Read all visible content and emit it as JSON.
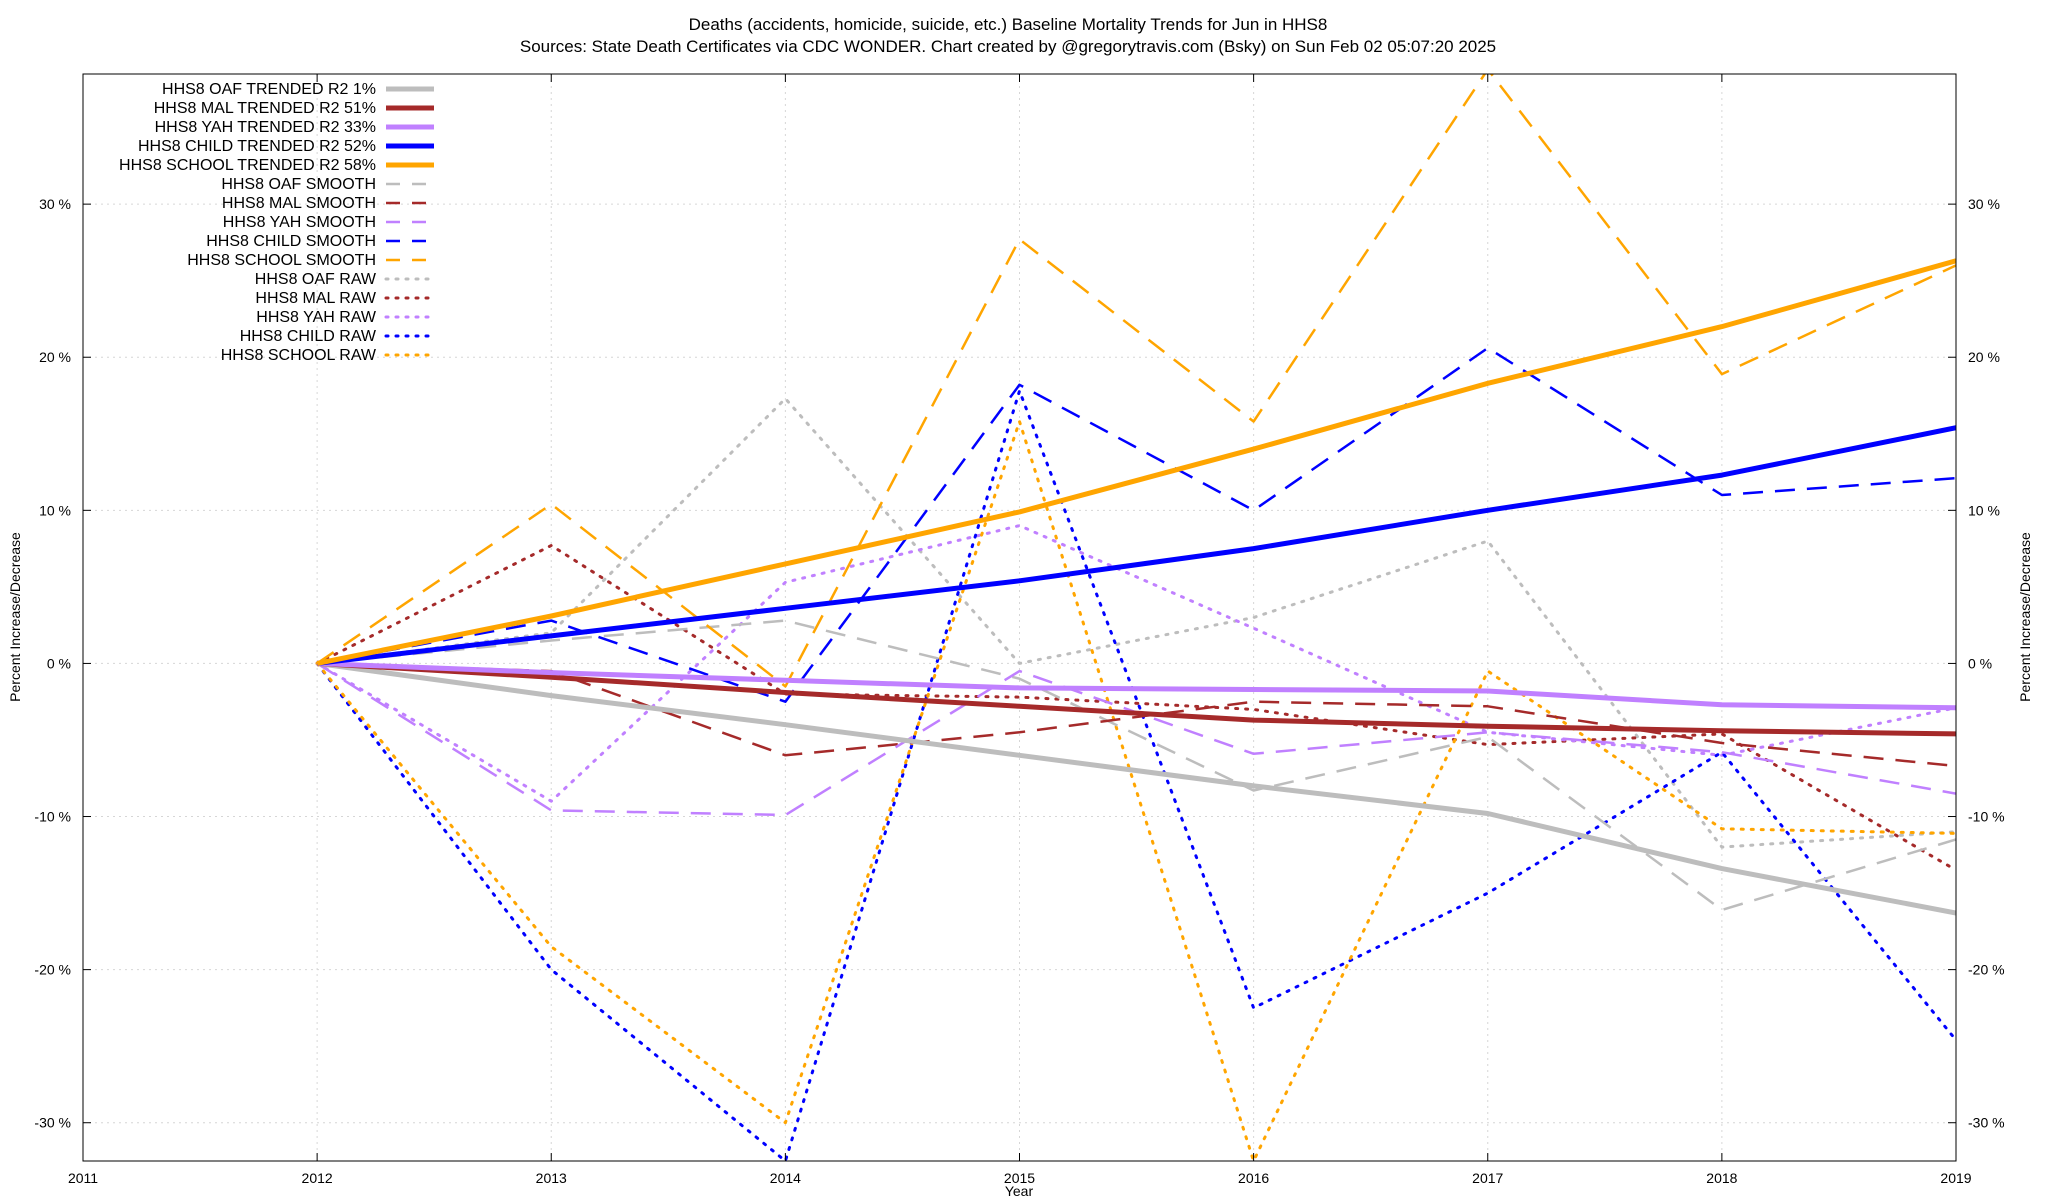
{
  "chart_data": {
    "type": "line",
    "title_line1": "Deaths (accidents, homicide, suicide, etc.)  Baseline Mortality Trends for Jun in HHS8",
    "title_line2": "Sources: State Death Certificates via CDC WONDER.                Chart created by @gregorytravis.com (Bsky) on Sun Feb 02 05:07:20 2025",
    "xlabel": "Year",
    "ylabel_left": "Percent Increase/Decrease",
    "ylabel_right": "Percent Increase/Decrease",
    "xlim": [
      2011,
      2019
    ],
    "ylim": [
      -32.5,
      38.5
    ],
    "x_ticks": [
      2011,
      2012,
      2013,
      2014,
      2015,
      2016,
      2017,
      2018,
      2019
    ],
    "y_ticks": [
      {
        "value": 30,
        "label": "30 %"
      },
      {
        "value": 20,
        "label": "20 %"
      },
      {
        "value": 10,
        "label": "10 %"
      },
      {
        "value": 0,
        "label": "0 %"
      },
      {
        "value": -10,
        "label": "-10 %"
      },
      {
        "value": -20,
        "label": "-20 %"
      },
      {
        "value": -30,
        "label": "-30 %"
      }
    ],
    "grid": true,
    "legend_position": "top-left",
    "x": [
      2012,
      2013,
      2014,
      2015,
      2016,
      2017,
      2018,
      2019
    ],
    "series": [
      {
        "name": "HHS8 OAF TRENDED R2   1%",
        "style": "trend",
        "color": "#bdbdbd",
        "values": [
          0,
          -2.1,
          -4.0,
          -6.0,
          -8.0,
          -9.8,
          -13.4,
          -16.3
        ]
      },
      {
        "name": "HHS8 MAL TRENDED R2  51%",
        "style": "trend",
        "color": "#a52a2a",
        "values": [
          0,
          -0.9,
          -1.9,
          -2.8,
          -3.7,
          -4.1,
          -4.4,
          -4.6
        ]
      },
      {
        "name": "HHS8 YAH TRENDED R2  33%",
        "style": "trend",
        "color": "#c080ff",
        "values": [
          0,
          -0.6,
          -1.1,
          -1.6,
          -1.7,
          -1.8,
          -2.7,
          -2.9
        ]
      },
      {
        "name": "HHS8 CHILD TRENDED R2  52%",
        "style": "trend",
        "color": "#0000ff",
        "values": [
          0,
          1.8,
          3.6,
          5.4,
          7.5,
          10.0,
          12.3,
          15.4
        ]
      },
      {
        "name": "HHS8 SCHOOL TRENDED R2  58%",
        "style": "trend",
        "color": "#ffa500",
        "values": [
          0,
          3.1,
          6.5,
          9.9,
          14.0,
          18.3,
          22.0,
          26.3
        ]
      },
      {
        "name": "HHS8 OAF SMOOTH",
        "style": "smooth",
        "color": "#bdbdbd",
        "values": [
          0,
          1.5,
          2.8,
          -1.0,
          -8.3,
          -4.8,
          -16.1,
          -11.5
        ]
      },
      {
        "name": "HHS8 MAL SMOOTH",
        "style": "smooth",
        "color": "#a52a2a",
        "values": [
          0,
          -0.5,
          -6.0,
          -4.5,
          -2.5,
          -2.8,
          -5.2,
          -6.7
        ]
      },
      {
        "name": "HHS8 YAH SMOOTH",
        "style": "smooth",
        "color": "#c080ff",
        "values": [
          0,
          -9.6,
          -9.9,
          -0.5,
          -5.9,
          -4.5,
          -5.8,
          -8.5
        ]
      },
      {
        "name": "HHS8 CHILD SMOOTH",
        "style": "smooth",
        "color": "#0000ff",
        "values": [
          0,
          2.8,
          -2.5,
          18.2,
          10.0,
          20.6,
          11.0,
          12.1
        ]
      },
      {
        "name": "HHS8 SCHOOL SMOOTH",
        "style": "smooth",
        "color": "#ffa500",
        "values": [
          0,
          10.4,
          -1.5,
          27.7,
          15.8,
          38.8,
          18.9,
          26.0
        ]
      },
      {
        "name": "HHS8 OAF RAW",
        "style": "raw",
        "color": "#bdbdbd",
        "values": [
          0,
          2.0,
          17.3,
          0.0,
          3.0,
          8.0,
          -12.0,
          -11.0
        ]
      },
      {
        "name": "HHS8 MAL RAW",
        "style": "raw",
        "color": "#a52a2a",
        "values": [
          0,
          7.7,
          -2.0,
          -2.2,
          -3.0,
          -5.3,
          -4.6,
          -13.5
        ]
      },
      {
        "name": "HHS8 YAH RAW",
        "style": "raw",
        "color": "#c080ff",
        "values": [
          0,
          -9.0,
          5.3,
          9.0,
          2.3,
          -4.5,
          -6.0,
          -2.9
        ]
      },
      {
        "name": "HHS8 CHILD RAW",
        "style": "raw",
        "color": "#0000ff",
        "values": [
          0,
          -20.0,
          -32.5,
          17.8,
          -22.5,
          -15.0,
          -5.8,
          -24.6
        ]
      },
      {
        "name": "HHS8 SCHOOL RAW",
        "style": "raw",
        "color": "#ffa500",
        "values": [
          0,
          -18.5,
          -30.0,
          15.8,
          -32.5,
          -0.5,
          -10.8,
          -11.1
        ]
      }
    ]
  }
}
